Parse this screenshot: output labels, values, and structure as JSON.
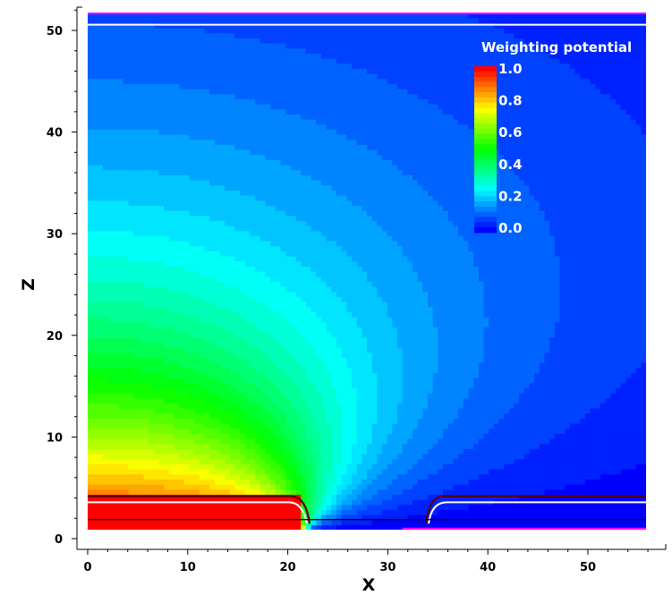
{
  "chart_data": {
    "type": "heatmap",
    "title": "",
    "xlabel": "X",
    "ylabel": "Z",
    "xlim": [
      0,
      55
    ],
    "ylim": [
      1,
      52
    ],
    "x_ticks": [
      "0",
      "10",
      "20",
      "30",
      "40",
      "50"
    ],
    "y_ticks": [
      "0",
      "10",
      "20",
      "30",
      "40",
      "50"
    ],
    "colorbar": {
      "title": "Weighting potential",
      "range": [
        0.0,
        1.0
      ],
      "tick_labels": [
        "1.0",
        "0.8",
        "0.6",
        "0.4",
        "0.2",
        "0.0"
      ],
      "tick_values": [
        1.0,
        0.8,
        0.6,
        0.4,
        0.2,
        0.0
      ],
      "levels": 32
    },
    "colormap": [
      "#0000ff",
      "#00ffff",
      "#00ff00",
      "#ffff00",
      "#ff0000"
    ],
    "field_model": {
      "description_units": "data units (x, z)",
      "electrodes": [
        {
          "name": "left-electrode",
          "x_range": [
            0,
            21.5
          ],
          "z_top": 4.3,
          "potential": 1.0
        },
        {
          "name": "right-electrode",
          "x_range": [
            33.5,
            55
          ],
          "z_top": 4.3,
          "potential": 0.0
        }
      ],
      "contour_lines": [
        {
          "name": "white-line-top",
          "z": 50.8,
          "color": "#ffffff"
        },
        {
          "name": "black-line-bottom",
          "z": 2.0,
          "color": "#000000"
        }
      ]
    }
  }
}
